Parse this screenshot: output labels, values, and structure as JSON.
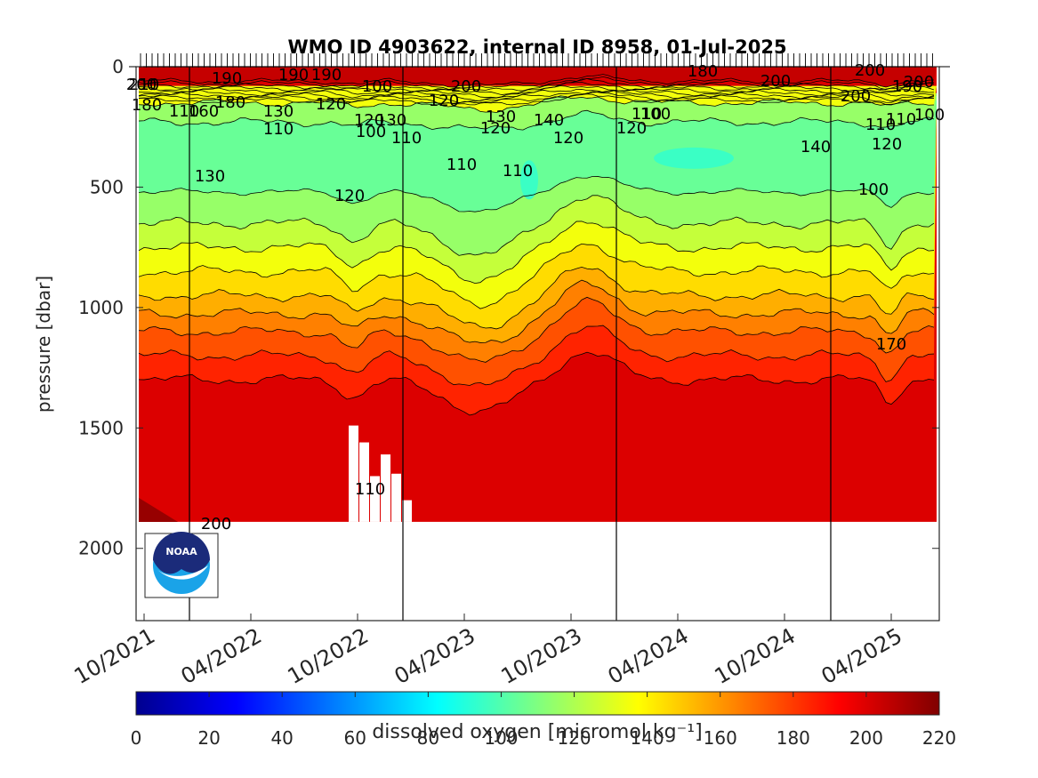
{
  "chart_data": {
    "type": "heatmap",
    "title": "WMO ID 4903622, internal ID 8958, 01-Jul-2025",
    "ylabel": "pressure [dbar]",
    "y_reversed": true,
    "ylim": [
      0,
      2300
    ],
    "y_ticks": [
      "0",
      "500",
      "1000",
      "1500",
      "2000"
    ],
    "x_tick_labels": [
      "10/2021",
      "04/2022",
      "10/2022",
      "04/2023",
      "10/2023",
      "04/2024",
      "10/2024",
      "04/2025"
    ],
    "colorbar": {
      "label": "dissolved oxygen [micromol kg⁻¹]",
      "range": [
        0,
        220
      ],
      "ticks": [
        "0",
        "20",
        "40",
        "60",
        "80",
        "100",
        "120",
        "140",
        "160",
        "180",
        "200",
        "220"
      ],
      "colormap": "jet"
    },
    "profile_depth_dbar": 1890,
    "year_markers": [
      "01/2022",
      "01/2023",
      "01/2024",
      "01/2025"
    ],
    "depth_structure": [
      {
        "pressure": 0,
        "oxygen": 210
      },
      {
        "pressure": 50,
        "oxygen": 190
      },
      {
        "pressure": 120,
        "oxygen": 130
      },
      {
        "pressure": 250,
        "oxygen": 110
      },
      {
        "pressure": 450,
        "oxygen": 100
      },
      {
        "pressure": 650,
        "oxygen": 120
      },
      {
        "pressure": 800,
        "oxygen": 135
      },
      {
        "pressure": 950,
        "oxygen": 150
      },
      {
        "pressure": 1100,
        "oxygen": 170
      },
      {
        "pressure": 1300,
        "oxygen": 190
      },
      {
        "pressure": 1500,
        "oxygen": 200
      },
      {
        "pressure": 1890,
        "oxygen": 200
      }
    ],
    "contour_labels": [
      "200",
      "210",
      "190",
      "190",
      "190",
      "180",
      "200",
      "200",
      "200",
      "190",
      "200",
      "180",
      "180",
      "160",
      "130",
      "120",
      "130",
      "120",
      "110",
      "120",
      "110",
      "140",
      "120",
      "110",
      "120",
      "130",
      "100",
      "110",
      "120",
      "110",
      "110",
      "100",
      "100",
      "110",
      "110",
      "120",
      "140",
      "130",
      "120",
      "100",
      "110",
      "200",
      "170",
      "200",
      "100"
    ],
    "logo": "NOAA"
  }
}
